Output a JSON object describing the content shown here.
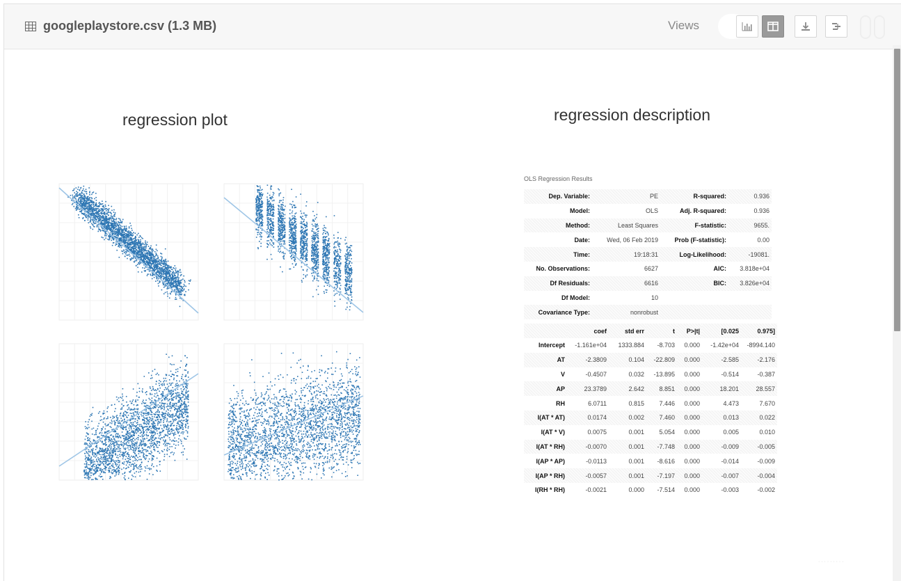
{
  "header": {
    "file_name": "googleplaystore.csv (1.3 MB)",
    "views_label": "Views",
    "buttons": [
      {
        "name": "chart-view-button",
        "icon": "bar-chart-icon"
      },
      {
        "name": "split-view-button",
        "icon": "columns-icon"
      },
      {
        "name": "download-button",
        "icon": "download-icon"
      },
      {
        "name": "structure-button",
        "icon": "tree-icon"
      }
    ]
  },
  "left": {
    "title": "regression plot"
  },
  "right": {
    "title": "regression description"
  },
  "colors": {
    "points": "#2f77b4",
    "line": "#9ec5e6",
    "active_button": "#9a9a9a"
  },
  "ols": {
    "caption": "OLS Regression Results",
    "summary": [
      [
        "Dep. Variable:",
        "PE",
        "R-squared:",
        "0.936"
      ],
      [
        "Model:",
        "OLS",
        "Adj. R-squared:",
        "0.936"
      ],
      [
        "Method:",
        "Least Squares",
        "F-statistic:",
        "9655."
      ],
      [
        "Date:",
        "Wed, 06 Feb 2019",
        "Prob (F-statistic):",
        "0.00"
      ],
      [
        "Time:",
        "19:18:31",
        "Log-Likelihood:",
        "-19081."
      ],
      [
        "No. Observations:",
        "6627",
        "AIC:",
        "3.818e+04"
      ],
      [
        "Df Residuals:",
        "6616",
        "BIC:",
        "3.826e+04"
      ],
      [
        "Df Model:",
        "10",
        "",
        ""
      ],
      [
        "Covariance Type:",
        "nonrobust",
        "",
        ""
      ]
    ],
    "coef_headers": [
      "",
      "coef",
      "std err",
      "t",
      "P>|t|",
      "[0.025",
      "0.975]"
    ],
    "coef_rows": [
      [
        "Intercept",
        "-1.161e+04",
        "1333.884",
        "-8.703",
        "0.000",
        "-1.42e+04",
        "-8994.140"
      ],
      [
        "AT",
        "-2.3809",
        "0.104",
        "-22.809",
        "0.000",
        "-2.585",
        "-2.176"
      ],
      [
        "V",
        "-0.4507",
        "0.032",
        "-13.895",
        "0.000",
        "-0.514",
        "-0.387"
      ],
      [
        "AP",
        "23.3789",
        "2.642",
        "8.851",
        "0.000",
        "18.201",
        "28.557"
      ],
      [
        "RH",
        "6.0711",
        "0.815",
        "7.446",
        "0.000",
        "4.473",
        "7.670"
      ],
      [
        "I(AT * AT)",
        "0.0174",
        "0.002",
        "7.460",
        "0.000",
        "0.013",
        "0.022"
      ],
      [
        "I(AT * V)",
        "0.0075",
        "0.001",
        "5.054",
        "0.000",
        "0.005",
        "0.010"
      ],
      [
        "I(AT * RH)",
        "-0.0070",
        "0.001",
        "-7.748",
        "0.000",
        "-0.009",
        "-0.005"
      ],
      [
        "I(AP * AP)",
        "-0.0113",
        "0.001",
        "-8.616",
        "0.000",
        "-0.014",
        "-0.009"
      ],
      [
        "I(AP * RH)",
        "-0.0057",
        "0.001",
        "-7.197",
        "0.000",
        "-0.007",
        "-0.004"
      ],
      [
        "I(RH * RH)",
        "-0.0021",
        "0.000",
        "-7.514",
        "0.000",
        "-0.003",
        "-0.002"
      ]
    ]
  }
}
